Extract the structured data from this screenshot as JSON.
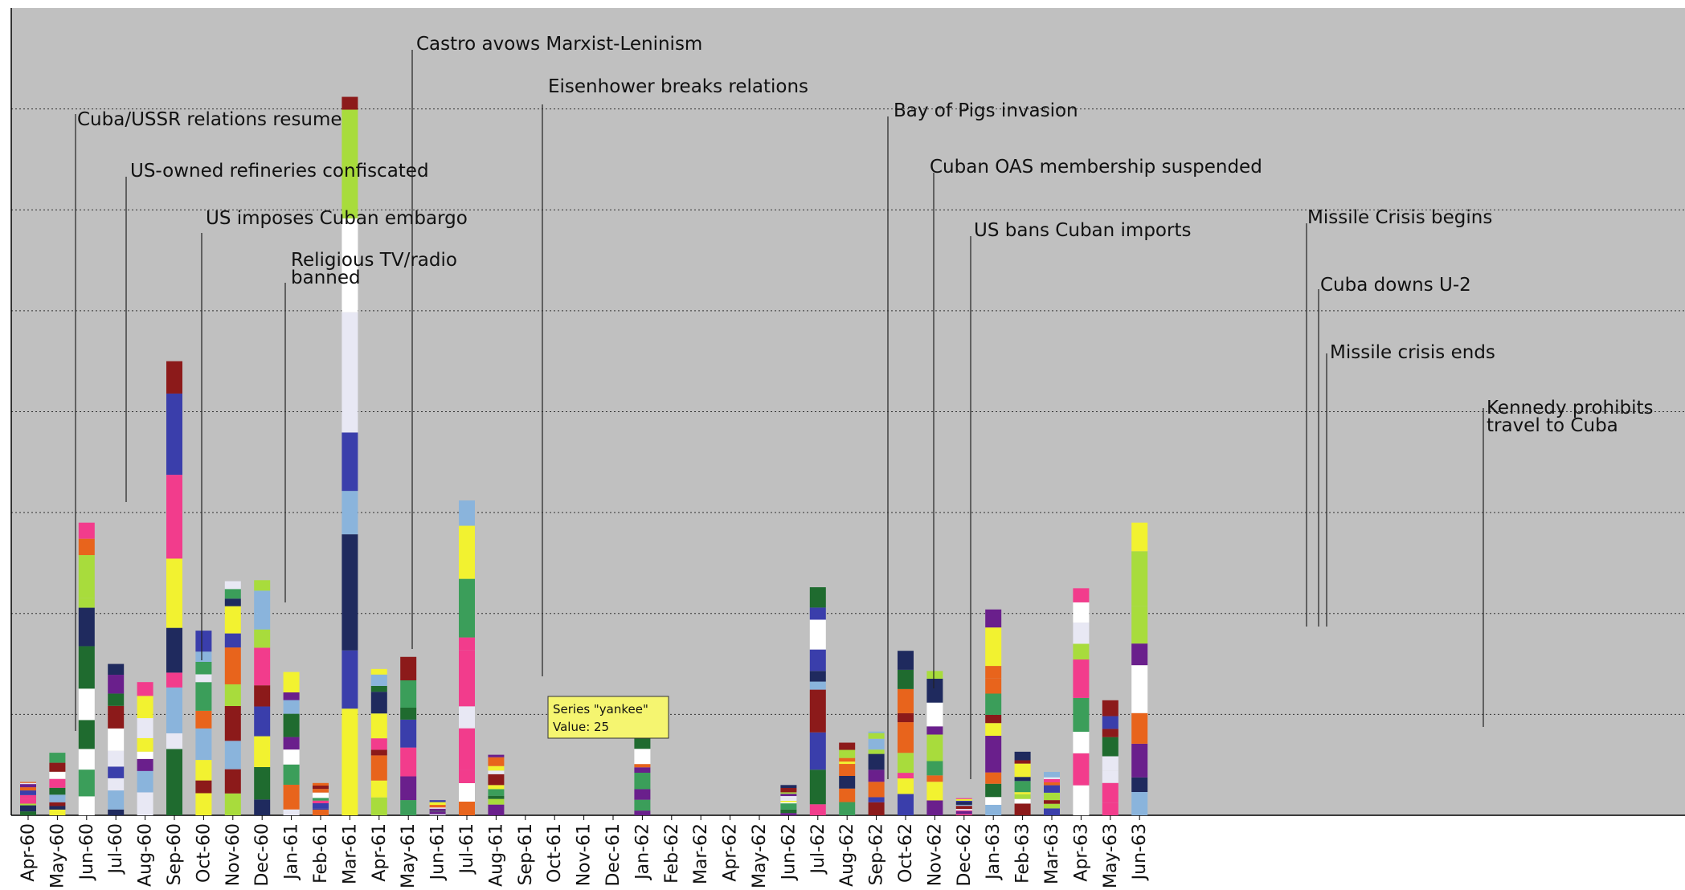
{
  "chart_data": {
    "type": "bar",
    "stacked": true,
    "grid": true,
    "categories": [
      "Apr-60",
      "May-60",
      "Jun-60",
      "Jul-60",
      "Aug-60",
      "Sep-60",
      "Oct-60",
      "Nov-60",
      "Dec-60",
      "Jan-61",
      "Feb-61",
      "Mar-61",
      "Apr-61",
      "May-61",
      "Jun-61",
      "Jul-61",
      "Aug-61",
      "Sep-61",
      "Oct-61",
      "Nov-61",
      "Dec-61",
      "Jan-62",
      "Feb-62",
      "Mar-62",
      "Apr-62",
      "May-62",
      "Jun-62",
      "Jul-62",
      "Aug-62",
      "Sep-62",
      "Oct-62",
      "Nov-62",
      "Dec-62",
      "Jan-63",
      "Feb-63",
      "Mar-63",
      "Apr-63",
      "May-63",
      "Jun-63"
    ],
    "totals": [
      33,
      62,
      290,
      150,
      132,
      450,
      183,
      232,
      233,
      142,
      32,
      712,
      145,
      157,
      15,
      312,
      60,
      0,
      0,
      0,
      0,
      102,
      0,
      0,
      0,
      0,
      30,
      226,
      72,
      83,
      163,
      143,
      17,
      204,
      63,
      43,
      225,
      114,
      290
    ],
    "segment_colors": [
      "#6a1f8c",
      "#f2f230",
      "#3a3eab",
      "#e8641c",
      "#1f6b2f",
      "#8c1a1a",
      "#e8e8f4",
      "#8ab4dc",
      "#3b9e5a",
      "#1f2a5e",
      "#f23c8c",
      "#a8dc3c",
      "#ffffff"
    ],
    "ylim": [
      0,
      800
    ],
    "yticks": [
      100,
      200,
      300,
      400,
      500,
      600,
      700
    ],
    "annotations": [
      {
        "text": "Cuba/USSR relations resume",
        "category": "May-60"
      },
      {
        "text": "US-owned refineries confiscated",
        "category": "Jun-60"
      },
      {
        "text": "US imposes Cuban embargo",
        "category": "Aug-60"
      },
      {
        "text": "Religious TV/radio\nbanned",
        "category": "Oct-60"
      },
      {
        "text": "Castro avows Marxist-Leninism",
        "category": "Jan-61"
      },
      {
        "text": "Eisenhower breaks relations",
        "category": "Apr-61"
      },
      {
        "text": "Bay of Pigs invasion",
        "category": "Dec-61"
      },
      {
        "text": "Cuban OAS membership suspended",
        "category": "Jan-62"
      },
      {
        "text": "US bans Cuban imports",
        "category": "Feb-62"
      },
      {
        "text": "Missile Crisis begins",
        "category": "Oct-62"
      },
      {
        "text": "Cuba downs U-2",
        "category": "Oct-62"
      },
      {
        "text": "Missile crisis ends",
        "category": "Oct-62"
      },
      {
        "text": "Kennedy prohibits\ntravel to Cuba",
        "category": "Feb-63"
      }
    ],
    "tooltip": {
      "series": "Series \"yankee\"",
      "value": "Value: 25",
      "category": "Apr-61"
    }
  }
}
